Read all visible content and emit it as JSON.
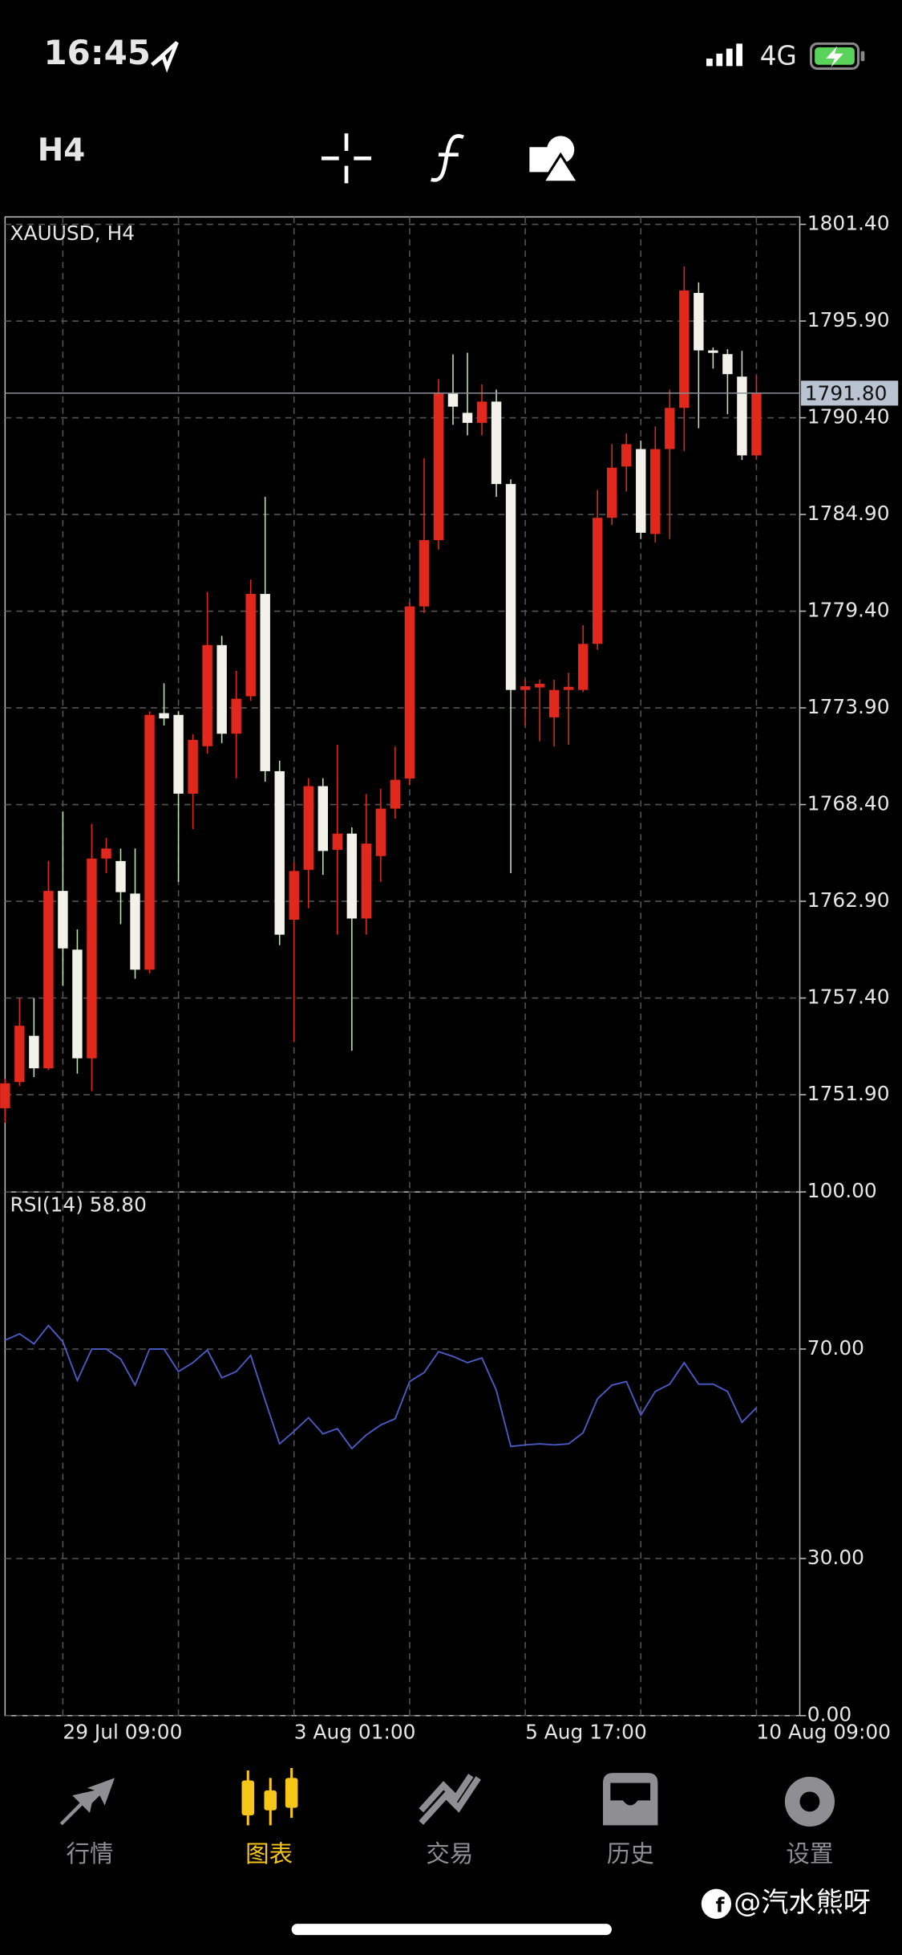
{
  "status_bar": {
    "time": "16:45",
    "network": "4G"
  },
  "toolbar": {
    "timeframe": "H4"
  },
  "chart_data": [
    {
      "type": "candlestick",
      "title": "XAUUSD, H4",
      "up_color": "#e0281c",
      "down_color": "#f2f2ea",
      "down_wick_color": "#bfe3b4",
      "open": [
        1751.13,
        1752.62,
        1755.25,
        1753.4,
        1763.49,
        1760.15,
        1753.97,
        1765.33,
        1765.19,
        1763.34,
        1759.01,
        1773.6,
        1773.5,
        1769.02,
        1771.72,
        1777.47,
        1772.43,
        1774.56,
        1780.38,
        1770.3,
        1761.85,
        1764.69,
        1769.45,
        1765.83,
        1766.75,
        1761.92,
        1765.47,
        1768.17,
        1769.88,
        1779.67,
        1783.44,
        1791.81,
        1790.68,
        1790.11,
        1791.32,
        1786.63,
        1774.92,
        1775.06,
        1773.36,
        1774.92,
        1774.92,
        1777.54,
        1784.71,
        1787.63,
        1788.62,
        1783.79,
        1788.62,
        1790.96,
        1797.5,
        1794.23,
        1794.02,
        1792.74,
        1788.26
      ],
      "high": [
        1752.8,
        1757.4,
        1757.4,
        1765.2,
        1768.0,
        1761.3,
        1767.3,
        1766.5,
        1765.9,
        1765.9,
        1773.7,
        1775.3,
        1773.7,
        1772.4,
        1780.5,
        1778.0,
        1776.0,
        1781.2,
        1785.9,
        1770.9,
        1765.1,
        1769.9,
        1769.9,
        1771.8,
        1767.1,
        1769.0,
        1769.3,
        1771.7,
        1779.9,
        1788.1,
        1792.6,
        1794.0,
        1794.1,
        1792.3,
        1792.0,
        1786.9,
        1775.5,
        1775.5,
        1775.5,
        1775.9,
        1778.6,
        1786.3,
        1788.9,
        1789.5,
        1789.1,
        1789.9,
        1792.0,
        1799.0,
        1798.1,
        1794.4,
        1794.3,
        1794.2,
        1792.8
      ],
      "low": [
        1750.3,
        1752.4,
        1752.9,
        1753.3,
        1758.1,
        1753.1,
        1752.1,
        1764.5,
        1761.6,
        1758.5,
        1758.8,
        1772.9,
        1764.0,
        1767.0,
        1771.3,
        1771.9,
        1769.9,
        1774.3,
        1769.7,
        1760.4,
        1754.9,
        1762.5,
        1764.4,
        1761.0,
        1754.4,
        1761.0,
        1764.0,
        1767.6,
        1769.5,
        1779.3,
        1782.9,
        1790.0,
        1789.4,
        1789.4,
        1785.9,
        1764.5,
        1772.9,
        1772.0,
        1771.7,
        1771.8,
        1774.8,
        1777.2,
        1784.3,
        1786.2,
        1783.5,
        1783.3,
        1783.5,
        1788.5,
        1789.8,
        1793.2,
        1790.6,
        1788.0,
        1788.0
      ],
      "close": [
        1752.55,
        1755.82,
        1753.4,
        1763.49,
        1760.22,
        1753.97,
        1765.33,
        1765.9,
        1763.42,
        1759.01,
        1773.5,
        1773.3,
        1769.02,
        1772.08,
        1777.47,
        1772.43,
        1774.42,
        1780.38,
        1770.3,
        1761.0,
        1764.62,
        1769.45,
        1765.76,
        1766.75,
        1761.92,
        1766.18,
        1768.17,
        1769.81,
        1779.67,
        1783.44,
        1791.81,
        1791.03,
        1790.11,
        1791.32,
        1786.63,
        1774.92,
        1775.13,
        1775.27,
        1774.92,
        1775.1,
        1777.54,
        1784.71,
        1787.56,
        1788.9,
        1783.86,
        1788.62,
        1790.96,
        1797.64,
        1794.23,
        1794.09,
        1792.88,
        1788.26,
        1791.8
      ],
      "ylim": [
        1746.44,
        1801.75
      ],
      "yticks": [
        {
          "value": 1801.4,
          "label": "1801.40"
        },
        {
          "value": 1795.9,
          "label": "1795.90"
        },
        {
          "value": 1790.4,
          "label": "1790.40"
        },
        {
          "value": 1784.9,
          "label": "1784.90"
        },
        {
          "value": 1779.4,
          "label": "1779.40"
        },
        {
          "value": 1773.9,
          "label": "1773.90"
        },
        {
          "value": 1768.4,
          "label": "1768.40"
        },
        {
          "value": 1762.9,
          "label": "1762.90"
        },
        {
          "value": 1757.4,
          "label": "1757.40"
        },
        {
          "value": 1751.9,
          "label": "1751.90"
        }
      ],
      "current_price": {
        "value": 1791.8,
        "label": "1791.80"
      },
      "grid": true
    },
    {
      "type": "line",
      "title": "RSI(14) 58.80",
      "categories": [
        null,
        null,
        null,
        null,
        "29 Jul 09:00",
        null,
        null,
        null,
        null,
        null,
        null,
        null,
        null,
        null,
        null,
        null,
        null,
        null,
        null,
        null,
        "3 Aug 01:00",
        null,
        null,
        null,
        null,
        null,
        null,
        null,
        null,
        null,
        null,
        null,
        null,
        null,
        null,
        null,
        "5 Aug 17:00",
        null,
        null,
        null,
        null,
        null,
        null,
        null,
        null,
        null,
        null,
        null,
        null,
        null,
        null,
        null,
        "10 Aug 09:00"
      ],
      "series": [
        {
          "name": "RSI(14)",
          "color": "#4a5cc4",
          "values": [
            71.7,
            72.9,
            71.0,
            74.5,
            71.4,
            64.0,
            70.0,
            70.0,
            68.1,
            63.1,
            70.0,
            70.0,
            65.7,
            67.4,
            69.8,
            64.5,
            65.7,
            68.8,
            60.2,
            51.9,
            54.3,
            56.9,
            53.8,
            54.8,
            51.0,
            53.6,
            55.5,
            56.7,
            63.8,
            65.5,
            69.5,
            68.6,
            67.4,
            68.3,
            62.1,
            51.4,
            51.7,
            51.9,
            51.7,
            51.9,
            54.0,
            60.5,
            63.1,
            63.8,
            57.4,
            61.9,
            63.3,
            67.4,
            63.3,
            63.3,
            61.9,
            56.0,
            58.8
          ]
        }
      ],
      "ylim": [
        0,
        100
      ],
      "yticks": [
        {
          "value": 100,
          "label": "100.00"
        },
        {
          "value": 70,
          "label": "70.00"
        },
        {
          "value": 30,
          "label": "30.00"
        },
        {
          "value": 0,
          "label": "0.00"
        }
      ],
      "grid": true
    }
  ],
  "tab_bar": {
    "items": [
      "行情",
      "图表",
      "交易",
      "历史",
      "设置"
    ],
    "active": 1
  },
  "watermark": "@汽水熊呀"
}
